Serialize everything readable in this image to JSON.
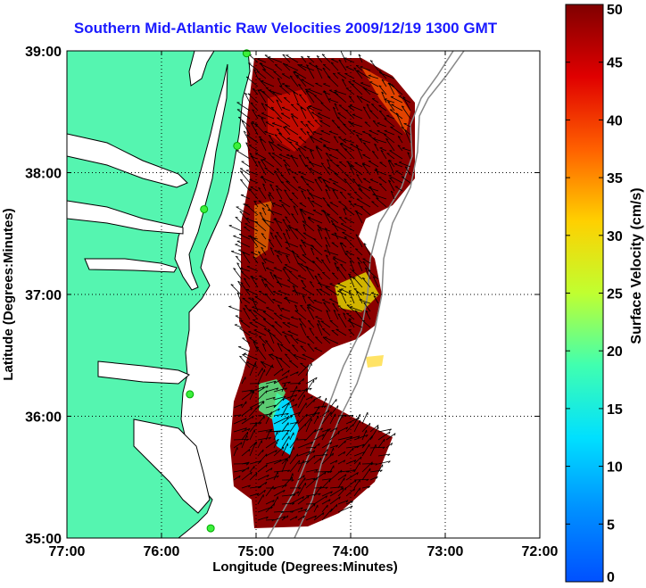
{
  "chart_data": {
    "type": "heatmap",
    "title": "Southern Mid-Atlantic Raw Velocities 2009/12/19 1300 GMT",
    "xlabel": "Longitude (Degrees:Minutes)",
    "ylabel": "Latitude (Degrees:Minutes)",
    "colorbar_label": "Surface Velocity (cm/s)",
    "x_ticks": [
      "77:00",
      "76:00",
      "75:00",
      "74:00",
      "73:00",
      "72:00"
    ],
    "x_tick_values": [
      -77,
      -76,
      -75,
      -74,
      -73,
      -72
    ],
    "y_ticks": [
      "39:00",
      "38:00",
      "37:00",
      "36:00",
      "35:00"
    ],
    "y_tick_values": [
      39,
      38,
      37,
      36,
      35
    ],
    "xlim": [
      -77,
      -72
    ],
    "ylim": [
      35,
      39
    ],
    "colorbar_ticks": [
      0,
      5,
      10,
      15,
      20,
      25,
      30,
      35,
      40,
      45,
      50
    ],
    "colorbar_range": [
      0,
      50
    ],
    "grid": true,
    "colormap": "jet",
    "land_color": "#55f5b0",
    "stations": [
      {
        "lon": -75.1,
        "lat": 38.98
      },
      {
        "lon": -75.2,
        "lat": 38.22
      },
      {
        "lon": -75.55,
        "lat": 37.7
      },
      {
        "lon": -75.7,
        "lat": 36.18
      },
      {
        "lon": -75.48,
        "lat": 35.08
      }
    ]
  }
}
